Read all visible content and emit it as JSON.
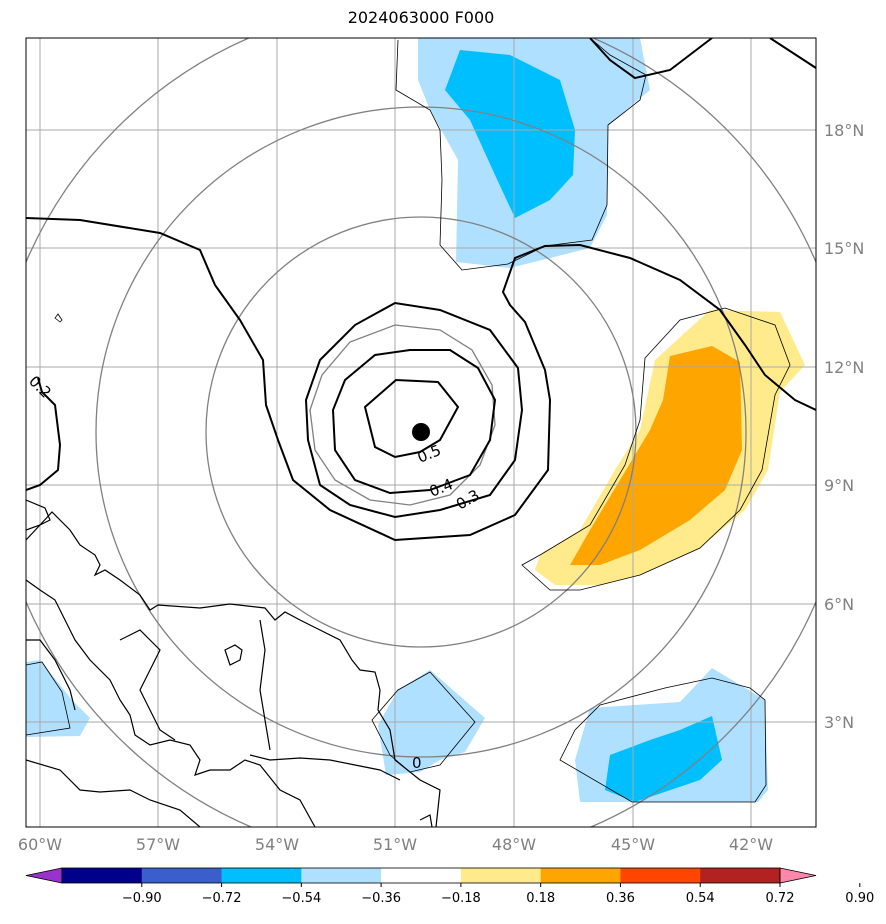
{
  "title": "2024063000 F000",
  "map": {
    "lat_labels": [
      "18°N",
      "15°N",
      "12°N",
      "9°N",
      "6°N",
      "3°N"
    ],
    "lon_labels": [
      "60°W",
      "57°W",
      "54°W",
      "51°W",
      "48°W",
      "45°W",
      "42°W"
    ],
    "contour_labels": [
      "0.5",
      "0.4",
      "0.3",
      "0.2",
      "0"
    ],
    "center_marker": "storm-center"
  },
  "colorbar": {
    "ticks": [
      "−0.90",
      "−0.72",
      "−0.54",
      "−0.36",
      "−0.18",
      "0.18",
      "0.36",
      "0.54",
      "0.72",
      "0.90"
    ],
    "colors": [
      "#9932cc",
      "#00008b",
      "#3a5fcd",
      "#00bfff",
      "#b0e0ff",
      "#ffffff",
      "#ffeb8c",
      "#ffa500",
      "#ff4500",
      "#b22222",
      "#ff88aa"
    ]
  }
}
